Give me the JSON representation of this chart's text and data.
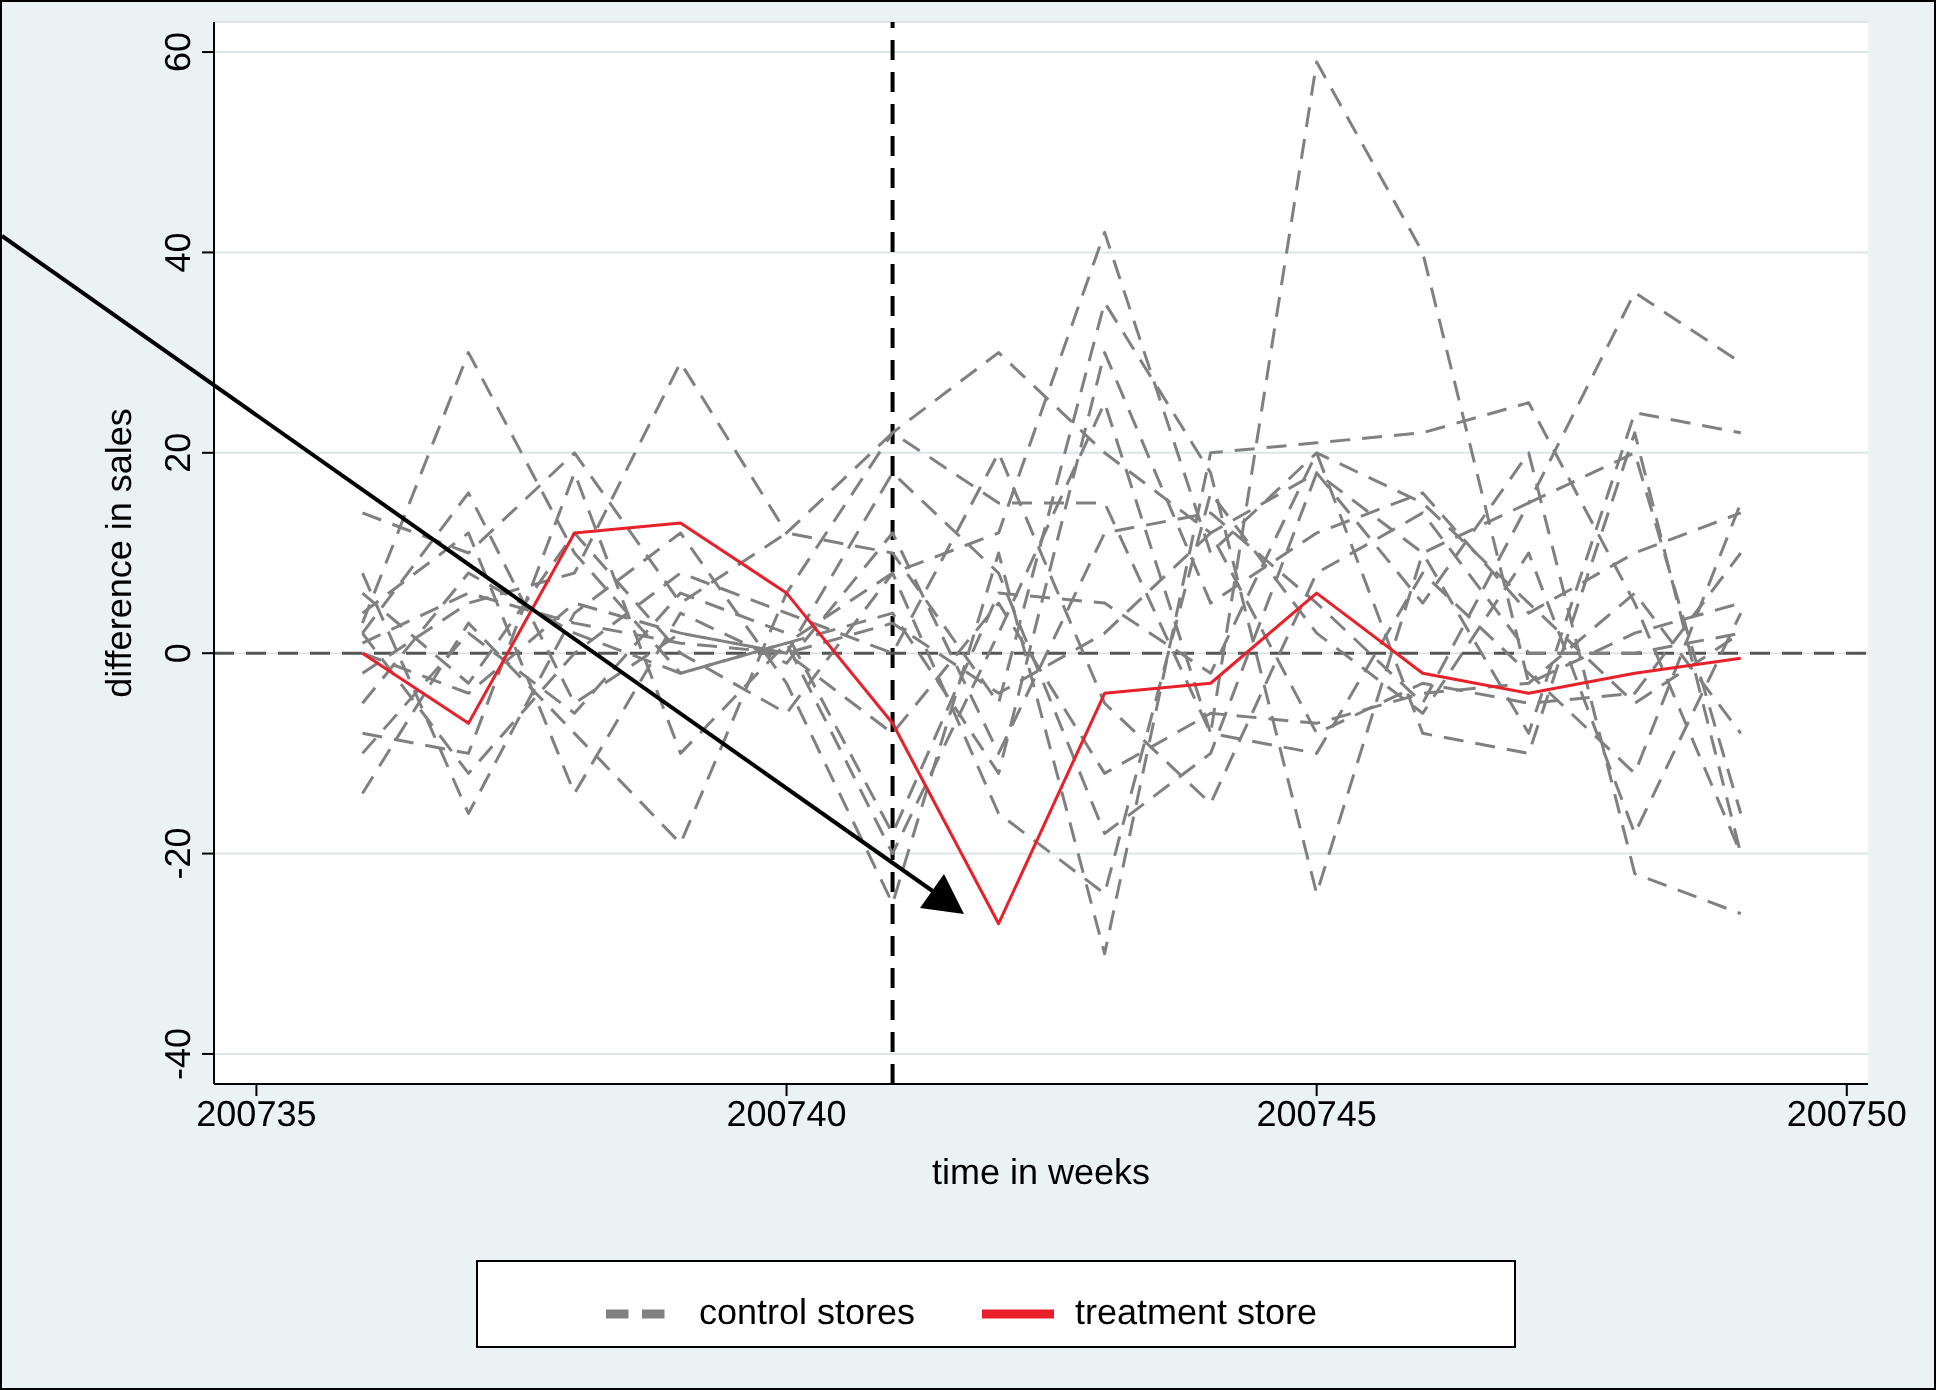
{
  "chart_data": {
    "type": "line",
    "xlabel": "time in weeks",
    "ylabel": "difference in sales",
    "x": [
      200736,
      200737,
      200738,
      200739,
      200740,
      200741,
      200742,
      200743,
      200744,
      200745,
      200746,
      200747,
      200748,
      200749
    ],
    "xlim": [
      200734.6,
      200750.2
    ],
    "xticks": [
      200735,
      200740,
      200745,
      200750
    ],
    "ylim": [
      -43,
      63
    ],
    "yticks": [
      -40,
      -20,
      0,
      20,
      40,
      60
    ],
    "grid": "y",
    "legend": "bottom",
    "marker": "none",
    "ref_lines": [
      {
        "axis": "x",
        "value": 200741,
        "color": "#000000",
        "line_style": "dashed"
      },
      {
        "axis": "y",
        "value": 0,
        "color": "#555555",
        "line_style": "dashed"
      }
    ],
    "series": [
      {
        "name": "control stores",
        "color": "#808080",
        "line_style": "dashed",
        "values": [
          3,
          30,
          10,
          -2,
          1,
          8,
          12,
          42,
          10,
          20,
          15,
          5,
          -5,
          2
        ]
      },
      {
        "color": "#808080",
        "line_style": "dashed",
        "values": [
          -2,
          5,
          8,
          29,
          12,
          22,
          15,
          15,
          -8,
          59,
          40,
          -3,
          2,
          5
        ]
      },
      {
        "color": "#808080",
        "line_style": "dashed",
        "values": [
          -14,
          3,
          -8,
          -19,
          6,
          22,
          30,
          20,
          12,
          18,
          5,
          20,
          -22,
          -26
        ]
      },
      {
        "color": "#808080",
        "line_style": "dashed",
        "values": [
          14,
          10,
          20,
          5,
          12,
          10,
          -5,
          35,
          18,
          -24,
          10,
          15,
          36,
          29
        ]
      },
      {
        "color": "#808080",
        "line_style": "dashed",
        "values": [
          8,
          -16,
          4,
          12,
          -3,
          -25,
          10,
          -30,
          20,
          21,
          22,
          25,
          5,
          -20
        ]
      },
      {
        "color": "#808080",
        "line_style": "dashed",
        "values": [
          2,
          16,
          -5,
          2,
          0,
          18,
          8,
          -18,
          -10,
          18,
          10,
          -8,
          24,
          22
        ]
      },
      {
        "color": "#808080",
        "line_style": "dashed",
        "values": [
          -8,
          -10,
          18,
          -10,
          1,
          -20,
          2,
          25,
          -8,
          -10,
          8,
          -2,
          -12,
          15
        ]
      },
      {
        "color": "#808080",
        "line_style": "dashed",
        "values": [
          4,
          12,
          -14,
          4,
          -1,
          12,
          -10,
          12,
          14,
          5,
          -5,
          15,
          20,
          -16
        ]
      },
      {
        "color": "#808080",
        "line_style": "dashed",
        "values": [
          0,
          -4,
          5,
          2,
          0,
          -8,
          5,
          -12,
          -6,
          -7,
          -4,
          -3,
          6,
          -8
        ]
      },
      {
        "color": "#808080",
        "line_style": "dashed",
        "values": [
          -5,
          8,
          2,
          -2,
          1,
          4,
          -12,
          30,
          5,
          12,
          16,
          4,
          10,
          14
        ]
      },
      {
        "color": "#808080",
        "line_style": "dashed",
        "values": [
          6,
          -3,
          12,
          0,
          -6,
          8,
          -16,
          -24,
          16,
          2,
          -6,
          10,
          -18,
          4
        ]
      },
      {
        "color": "#808080",
        "line_style": "dashed",
        "values": [
          -10,
          2,
          -6,
          6,
          2,
          -18,
          6,
          5,
          -2,
          20,
          -8,
          -10,
          22,
          -20
        ]
      },
      {
        "color": "#808080",
        "line_style": "dashed",
        "values": [
          1,
          6,
          3,
          1,
          0,
          3,
          -4,
          2,
          12,
          -8,
          -3,
          -5,
          -4,
          10
        ]
      },
      {
        "color": "#808080",
        "line_style": "dashed",
        "values": [
          2,
          -12,
          0,
          8,
          4,
          0,
          20,
          -5,
          -15,
          8,
          14,
          0,
          0,
          2
        ]
      },
      {
        "name": "treatment store",
        "color": "#e8202a",
        "line_style": "solid",
        "values": [
          0,
          -7,
          12,
          13,
          6,
          -7,
          -27,
          -4,
          -3,
          6,
          -2,
          -4,
          -2,
          -0.5
        ]
      }
    ]
  }
}
